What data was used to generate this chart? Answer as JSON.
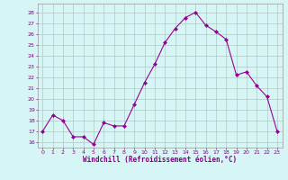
{
  "x": [
    0,
    1,
    2,
    3,
    4,
    5,
    6,
    7,
    8,
    9,
    10,
    11,
    12,
    13,
    14,
    15,
    16,
    17,
    18,
    19,
    20,
    21,
    22,
    23
  ],
  "y": [
    17,
    18.5,
    18,
    16.5,
    16.5,
    15.8,
    17.8,
    17.5,
    17.5,
    19.5,
    21.5,
    23.2,
    25.2,
    26.5,
    27.5,
    28,
    26.8,
    26.2,
    25.5,
    22.2,
    22.5,
    21.2,
    20.2,
    17
  ],
  "line_color": "#990099",
  "marker": "D",
  "marker_size": 2,
  "bg_color": "#d6f5f5",
  "grid_color": "#b0c8c8",
  "xlabel": "Windchill (Refroidissement éolien,°C)",
  "xlabel_color": "#880088",
  "tick_color": "#880088",
  "ylim": [
    15.5,
    28.8
  ],
  "yticks": [
    16,
    17,
    18,
    19,
    20,
    21,
    22,
    23,
    24,
    25,
    26,
    27,
    28
  ],
  "xlim": [
    -0.5,
    23.5
  ],
  "xticks": [
    0,
    1,
    2,
    3,
    4,
    5,
    6,
    7,
    8,
    9,
    10,
    11,
    12,
    13,
    14,
    15,
    16,
    17,
    18,
    19,
    20,
    21,
    22,
    23
  ]
}
